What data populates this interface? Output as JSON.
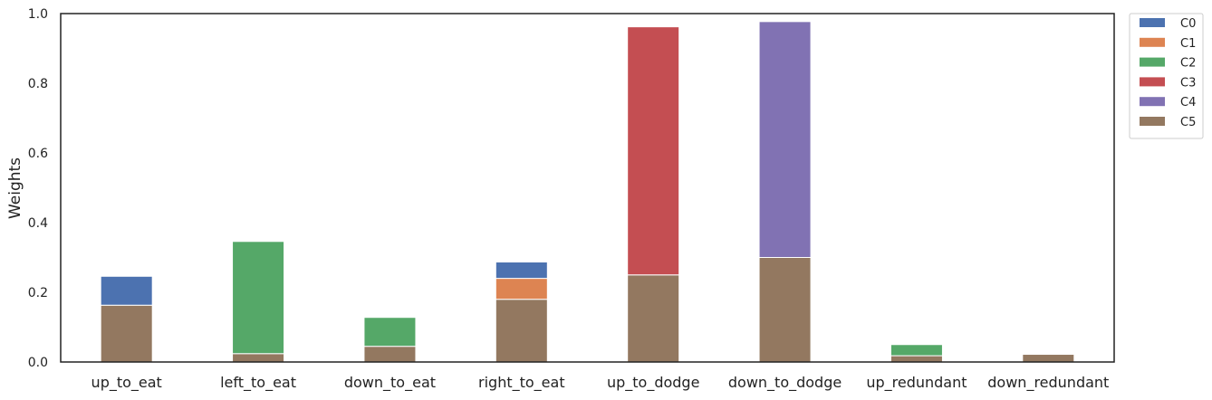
{
  "chart_data": {
    "type": "bar",
    "stacked": true,
    "title": "",
    "xlabel": "",
    "ylabel": "Weights",
    "ylim": [
      0,
      1.0
    ],
    "yticks": [
      "0.0",
      "0.2",
      "0.4",
      "0.6",
      "0.8",
      "1.0"
    ],
    "grid": false,
    "legend_position": "outside-top-right",
    "categories": [
      "up_to_eat",
      "left_to_eat",
      "down_to_eat",
      "right_to_eat",
      "up_to_dodge",
      "down_to_dodge",
      "up_redundant",
      "down_redundant"
    ],
    "stack_order": [
      "C5",
      "C4",
      "C3",
      "C2",
      "C1",
      "C0"
    ],
    "series": [
      {
        "name": "C0",
        "color": "#4c72b0",
        "values": [
          0.083,
          0,
          0,
          0.047,
          0,
          0,
          0,
          0
        ]
      },
      {
        "name": "C1",
        "color": "#dd8452",
        "values": [
          0,
          0,
          0,
          0.06,
          0,
          0,
          0,
          0
        ]
      },
      {
        "name": "C2",
        "color": "#55a868",
        "values": [
          0,
          0.322,
          0.083,
          0,
          0,
          0,
          0.032,
          0
        ]
      },
      {
        "name": "C3",
        "color": "#c44e52",
        "values": [
          0,
          0,
          0,
          0,
          0.712,
          0,
          0,
          0
        ]
      },
      {
        "name": "C4",
        "color": "#8172b3",
        "values": [
          0,
          0,
          0,
          0,
          0,
          0.677,
          0,
          0
        ]
      },
      {
        "name": "C5",
        "color": "#937860",
        "values": [
          0.163,
          0.024,
          0.045,
          0.18,
          0.25,
          0.3,
          0.018,
          0.022
        ]
      }
    ]
  }
}
